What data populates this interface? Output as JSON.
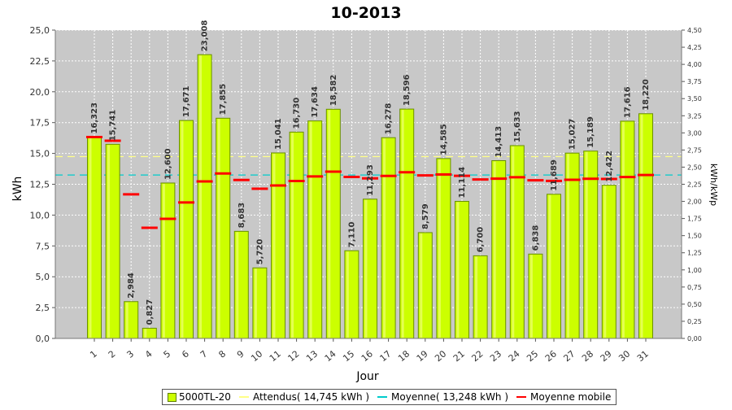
{
  "chart_data": {
    "type": "bar",
    "title": "10-2013",
    "xlabel": "Jour",
    "ylabel": "kWh",
    "y2label": "kWh/kWp",
    "ylim": [
      0,
      25
    ],
    "y2lim": [
      0,
      4.5
    ],
    "y_ticks": [
      "0,0",
      "2,5",
      "5,0",
      "7,5",
      "10,0",
      "12,5",
      "15,0",
      "17,5",
      "20,0",
      "22,5",
      "25,0"
    ],
    "y2_ticks": [
      "0,00",
      "0,25",
      "0,50",
      "0,75",
      "1,00",
      "1,25",
      "1,50",
      "1,75",
      "2,00",
      "2,25",
      "2,50",
      "2,75",
      "3,00",
      "3,25",
      "3,50",
      "3,75",
      "4,00",
      "4,25",
      "4,50"
    ],
    "categories": [
      "1",
      "2",
      "3",
      "4",
      "5",
      "6",
      "7",
      "8",
      "9",
      "10",
      "11",
      "12",
      "13",
      "14",
      "15",
      "16",
      "17",
      "18",
      "19",
      "20",
      "21",
      "22",
      "23",
      "24",
      "25",
      "26",
      "27",
      "28",
      "29",
      "30",
      "31"
    ],
    "series": [
      {
        "name": "5000TL-20",
        "type": "bar",
        "values": [
          16.323,
          15.741,
          2.984,
          0.827,
          12.6,
          17.671,
          23.008,
          17.855,
          8.683,
          5.72,
          15.041,
          16.73,
          17.634,
          18.582,
          7.11,
          11.293,
          16.278,
          18.596,
          8.579,
          14.585,
          11.114,
          6.7,
          14.413,
          15.633,
          6.838,
          11.689,
          15.027,
          15.189,
          12.422,
          17.616,
          18.22
        ],
        "labels": [
          "16,323",
          "15,741",
          "2,984",
          "0,827",
          "12,600",
          "17,671",
          "23,008",
          "17,855",
          "8,683",
          "5,720",
          "15,041",
          "16,730",
          "17,634",
          "18,582",
          "7,110",
          "11,293",
          "16,278",
          "18,596",
          "8,579",
          "14,585",
          "11,114",
          "6,700",
          "14,413",
          "15,633",
          "6,838",
          "11,689",
          "15,027",
          "15,189",
          "12,422",
          "17,616",
          "18,220"
        ],
        "color": "#ccff00"
      },
      {
        "name": "Attendus( 14,745 kWh )",
        "type": "hline",
        "value": 14.745,
        "color": "#ffff88"
      },
      {
        "name": "Moyenne( 13,248 kWh )",
        "type": "hline",
        "value": 13.248,
        "color": "#00cccc"
      },
      {
        "name": "Moyenne mobile",
        "type": "step-marker",
        "values": [
          16.323,
          16.032,
          11.683,
          8.969,
          9.695,
          11.025,
          12.73,
          13.371,
          12.849,
          12.136,
          12.4,
          12.76,
          13.134,
          13.523,
          13.095,
          12.981,
          13.176,
          13.477,
          13.22,
          13.288,
          13.185,
          12.89,
          12.956,
          13.07,
          12.822,
          12.776,
          12.863,
          12.948,
          12.928,
          13.084,
          13.248
        ],
        "color": "#ff0000"
      }
    ],
    "legend_position": "bottom",
    "grid": true
  }
}
